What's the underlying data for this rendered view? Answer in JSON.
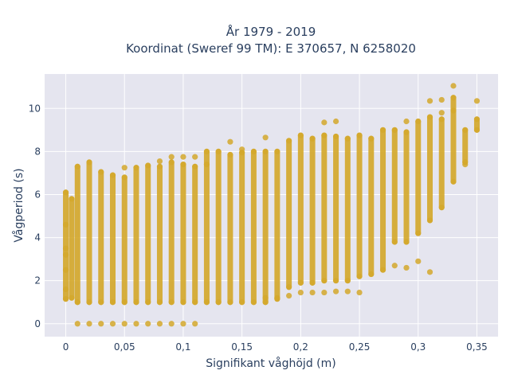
{
  "chart_data": {
    "type": "scatter",
    "title_lines": [
      "År 1979 - 2019",
      "Koordinat (Sweref 99 TM): E 370657, N 6258020"
    ],
    "xlabel": "Signifikant våghöjd (m)",
    "ylabel": "Vågperiod (s)",
    "xlim": [
      -0.018,
      0.368
    ],
    "ylim": [
      -0.6,
      11.6
    ],
    "x_ticks": [
      0,
      0.05,
      0.1,
      0.15,
      0.2,
      0.25,
      0.3,
      0.35
    ],
    "x_tick_labels": [
      "0",
      "0,05",
      "0,1",
      "0,15",
      "0,2",
      "0,25",
      "0,3",
      "0,35"
    ],
    "y_ticks": [
      0,
      2,
      4,
      6,
      8,
      10
    ],
    "y_tick_labels": [
      "0",
      "2",
      "4",
      "6",
      "8",
      "10"
    ],
    "grid": true,
    "marker_color": "#d4a82c",
    "plot_bg": "#e5e5ef",
    "columns": [
      {
        "x": 0.0,
        "ymin": 1.15,
        "ymax": 6.1,
        "extra": [
          3.2,
          3.5,
          2.5,
          1.6,
          4.6
        ]
      },
      {
        "x": 0.005,
        "ymin": 1.2,
        "ymax": 5.8,
        "extra": []
      },
      {
        "x": 0.01,
        "ymin": 1.0,
        "ymax": 7.3,
        "extra": [
          0.0
        ]
      },
      {
        "x": 0.02,
        "ymin": 1.0,
        "ymax": 7.5,
        "extra": [
          0.0
        ]
      },
      {
        "x": 0.03,
        "ymin": 1.0,
        "ymax": 7.05,
        "extra": [
          0.0
        ]
      },
      {
        "x": 0.04,
        "ymin": 1.0,
        "ymax": 6.9,
        "extra": [
          0.0
        ]
      },
      {
        "x": 0.05,
        "ymin": 1.0,
        "ymax": 6.8,
        "extra": [
          0.0,
          7.25
        ]
      },
      {
        "x": 0.06,
        "ymin": 1.0,
        "ymax": 7.25,
        "extra": [
          0.0
        ]
      },
      {
        "x": 0.07,
        "ymin": 1.0,
        "ymax": 7.35,
        "extra": [
          0.0
        ]
      },
      {
        "x": 0.08,
        "ymin": 1.0,
        "ymax": 7.3,
        "extra": [
          0.0,
          7.55
        ]
      },
      {
        "x": 0.09,
        "ymin": 1.0,
        "ymax": 7.5,
        "extra": [
          0.0,
          7.75
        ]
      },
      {
        "x": 0.1,
        "ymin": 1.0,
        "ymax": 7.4,
        "extra": [
          0.0,
          7.75
        ]
      },
      {
        "x": 0.11,
        "ymin": 1.0,
        "ymax": 7.3,
        "extra": [
          0.0,
          7.75
        ]
      },
      {
        "x": 0.12,
        "ymin": 1.0,
        "ymax": 8.0,
        "extra": [
          7.4
        ]
      },
      {
        "x": 0.13,
        "ymin": 1.0,
        "ymax": 8.0,
        "extra": []
      },
      {
        "x": 0.14,
        "ymin": 1.0,
        "ymax": 7.85,
        "extra": [
          8.45
        ]
      },
      {
        "x": 0.15,
        "ymin": 1.0,
        "ymax": 7.95,
        "extra": [
          8.1
        ]
      },
      {
        "x": 0.16,
        "ymin": 1.0,
        "ymax": 8.0,
        "extra": []
      },
      {
        "x": 0.17,
        "ymin": 1.0,
        "ymax": 8.0,
        "extra": [
          8.65,
          1.2
        ]
      },
      {
        "x": 0.18,
        "ymin": 1.15,
        "ymax": 8.0,
        "extra": [
          1.2
        ]
      },
      {
        "x": 0.19,
        "ymin": 1.7,
        "ymax": 8.5,
        "extra": [
          1.3
        ]
      },
      {
        "x": 0.2,
        "ymin": 1.9,
        "ymax": 8.75,
        "extra": [
          1.45
        ]
      },
      {
        "x": 0.21,
        "ymin": 1.9,
        "ymax": 8.6,
        "extra": [
          1.45
        ]
      },
      {
        "x": 0.22,
        "ymin": 2.0,
        "ymax": 8.75,
        "extra": [
          1.45,
          9.35
        ]
      },
      {
        "x": 0.23,
        "ymin": 2.0,
        "ymax": 8.7,
        "extra": [
          1.5,
          9.4
        ]
      },
      {
        "x": 0.24,
        "ymin": 2.0,
        "ymax": 8.6,
        "extra": [
          1.5
        ]
      },
      {
        "x": 0.25,
        "ymin": 2.2,
        "ymax": 8.75,
        "extra": [
          1.45
        ]
      },
      {
        "x": 0.26,
        "ymin": 2.3,
        "ymax": 8.6,
        "extra": []
      },
      {
        "x": 0.27,
        "ymin": 2.5,
        "ymax": 9.0,
        "extra": []
      },
      {
        "x": 0.28,
        "ymin": 3.8,
        "ymax": 9.0,
        "extra": [
          2.7
        ]
      },
      {
        "x": 0.29,
        "ymin": 3.8,
        "ymax": 8.9,
        "extra": [
          2.6,
          9.4
        ]
      },
      {
        "x": 0.3,
        "ymin": 4.2,
        "ymax": 9.4,
        "extra": [
          2.9
        ]
      },
      {
        "x": 0.31,
        "ymin": 4.8,
        "ymax": 9.6,
        "extra": [
          2.4,
          10.35
        ]
      },
      {
        "x": 0.32,
        "ymin": 5.4,
        "ymax": 9.5,
        "extra": [
          9.8,
          10.4
        ]
      },
      {
        "x": 0.33,
        "ymin": 6.6,
        "ymax": 10.5,
        "extra": [
          11.05,
          9.9
        ]
      },
      {
        "x": 0.34,
        "ymin": 7.5,
        "ymax": 9.0,
        "extra": [
          7.4
        ]
      },
      {
        "x": 0.35,
        "ymin": 9.0,
        "ymax": 9.5,
        "extra": [
          10.35
        ]
      }
    ]
  }
}
